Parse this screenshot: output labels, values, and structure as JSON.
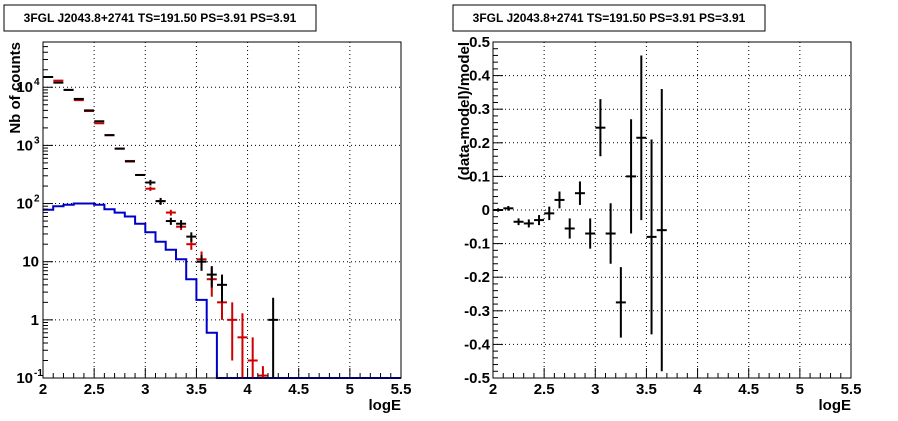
{
  "chart_data": [
    {
      "type": "scatter",
      "title": "3FGL J2043.8+2741 TS=191.50 PS=3.91 PS=3.91",
      "xlabel": "logE",
      "ylabel": "Nb of counts",
      "xlim": [
        2,
        5.5
      ],
      "ylim": [
        0.1,
        60000
      ],
      "yscale": "log",
      "grid": true,
      "xticks": [
        "2",
        "2.5",
        "3",
        "3.5",
        "4",
        "4.5",
        "5",
        "5.5"
      ],
      "yticks": [
        {
          "v": 0.1,
          "label": "10",
          "exp": "-1"
        },
        {
          "v": 1,
          "label": "1",
          "exp": ""
        },
        {
          "v": 10,
          "label": "10",
          "exp": ""
        },
        {
          "v": 100,
          "label": "10",
          "exp": "2"
        },
        {
          "v": 1000,
          "label": "10",
          "exp": "3"
        },
        {
          "v": 10000,
          "label": "10",
          "exp": "4"
        }
      ],
      "colors": {
        "data": "#000000",
        "model": "#cc0000",
        "background": "#0000cc"
      },
      "series": [
        {
          "style": "errorbar",
          "color": "#000000",
          "x": [
            2.05,
            2.15,
            2.25,
            2.35,
            2.45,
            2.55,
            2.65,
            2.75,
            2.85,
            2.95,
            3.05,
            3.15,
            3.25,
            3.35,
            3.45,
            3.55,
            3.65,
            3.75,
            4.25
          ],
          "y": [
            15000,
            12000,
            9000,
            6300,
            4000,
            2600,
            1500,
            880,
            530,
            310,
            230,
            110,
            50,
            45,
            27,
            10,
            6,
            4,
            1
          ],
          "err_lo": [
            0,
            0,
            0,
            0,
            0,
            0,
            0,
            0,
            0,
            0,
            25,
            15,
            7,
            7,
            5,
            3,
            2.4,
            2,
            0.9
          ],
          "err_hi": [
            0,
            0,
            0,
            0,
            0,
            0,
            0,
            0,
            0,
            0,
            25,
            15,
            7,
            7,
            5,
            3,
            2.4,
            2,
            1.4
          ]
        },
        {
          "style": "errorbar",
          "color": "#cc0000",
          "x": [
            2.05,
            2.15,
            2.25,
            2.35,
            2.45,
            2.55,
            2.65,
            2.75,
            2.85,
            2.95,
            3.05,
            3.15,
            3.25,
            3.35,
            3.45,
            3.55,
            3.65,
            3.75,
            3.85,
            3.95,
            4.05,
            4.15
          ],
          "y": [
            15000,
            13000,
            9000,
            6000,
            3900,
            2400,
            1500,
            880,
            540,
            310,
            180,
            110,
            70,
            40,
            20,
            11,
            5,
            2,
            1,
            0.5,
            0.2,
            0.11
          ],
          "err_lo": [
            0,
            0,
            0,
            0,
            0,
            0,
            0,
            0,
            0,
            0,
            15,
            10,
            8,
            5,
            4,
            4,
            2.5,
            1,
            0.8,
            0.4,
            0.1,
            0.01
          ],
          "err_hi": [
            0,
            0,
            0,
            0,
            0,
            0,
            0,
            0,
            0,
            0,
            15,
            10,
            8,
            6,
            5,
            4,
            3,
            3,
            1,
            0.8,
            0.3,
            0.05
          ]
        },
        {
          "style": "step",
          "color": "#0000cc",
          "edges": [
            2.0,
            2.1,
            2.2,
            2.3,
            2.4,
            2.5,
            2.6,
            2.7,
            2.8,
            2.9,
            3.0,
            3.1,
            3.2,
            3.3,
            3.4,
            3.5,
            3.6,
            3.7,
            3.8,
            3.9,
            4.0,
            4.1,
            4.2,
            4.3,
            4.4,
            4.5,
            4.6,
            4.7,
            4.8,
            4.9,
            5.0,
            5.1,
            5.2,
            5.3,
            5.4,
            5.5
          ],
          "values": [
            78,
            90,
            95,
            100,
            100,
            95,
            80,
            70,
            60,
            45,
            32,
            22,
            16,
            11,
            5,
            2.2,
            0.6,
            0.1,
            0.1,
            0.1,
            0.1,
            0.1,
            0.1,
            0.1,
            0.1,
            0.1,
            0.1,
            0.1,
            0.1,
            0.1,
            0.1,
            0.1,
            0.1,
            0.1,
            0.1
          ]
        }
      ]
    },
    {
      "type": "scatter",
      "title": "3FGL J2043.8+2741 TS=191.50 PS=3.91 PS=3.91",
      "xlabel": "logE",
      "ylabel": "(data-model)/model",
      "xlim": [
        2,
        5.5
      ],
      "ylim": [
        -0.5,
        0.5
      ],
      "grid": true,
      "xticks": [
        "2",
        "2.5",
        "3",
        "3.5",
        "4",
        "4.5",
        "5",
        "5.5"
      ],
      "yticks": [
        "0.5",
        "0.4",
        "0.3",
        "0.2",
        "0.1",
        "0",
        "-0.1",
        "-0.2",
        "-0.3",
        "-0.4",
        "-0.5"
      ],
      "series": [
        {
          "style": "errorbar",
          "color": "#000000",
          "x": [
            2.05,
            2.15,
            2.25,
            2.35,
            2.45,
            2.55,
            2.65,
            2.75,
            2.85,
            2.95,
            3.05,
            3.15,
            3.25,
            3.35,
            3.45,
            3.55,
            3.65
          ],
          "y": [
            0.0,
            0.005,
            -0.035,
            -0.04,
            -0.03,
            -0.01,
            0.03,
            -0.055,
            0.05,
            -0.07,
            0.245,
            -0.07,
            -0.275,
            0.1,
            0.215,
            -0.08,
            -0.06
          ],
          "err": [
            0.005,
            0.007,
            0.01,
            0.012,
            0.015,
            0.02,
            0.025,
            0.03,
            0.035,
            0.045,
            0.085,
            0.09,
            0.105,
            0.17,
            0.245,
            0.29,
            0.42
          ]
        }
      ]
    }
  ]
}
